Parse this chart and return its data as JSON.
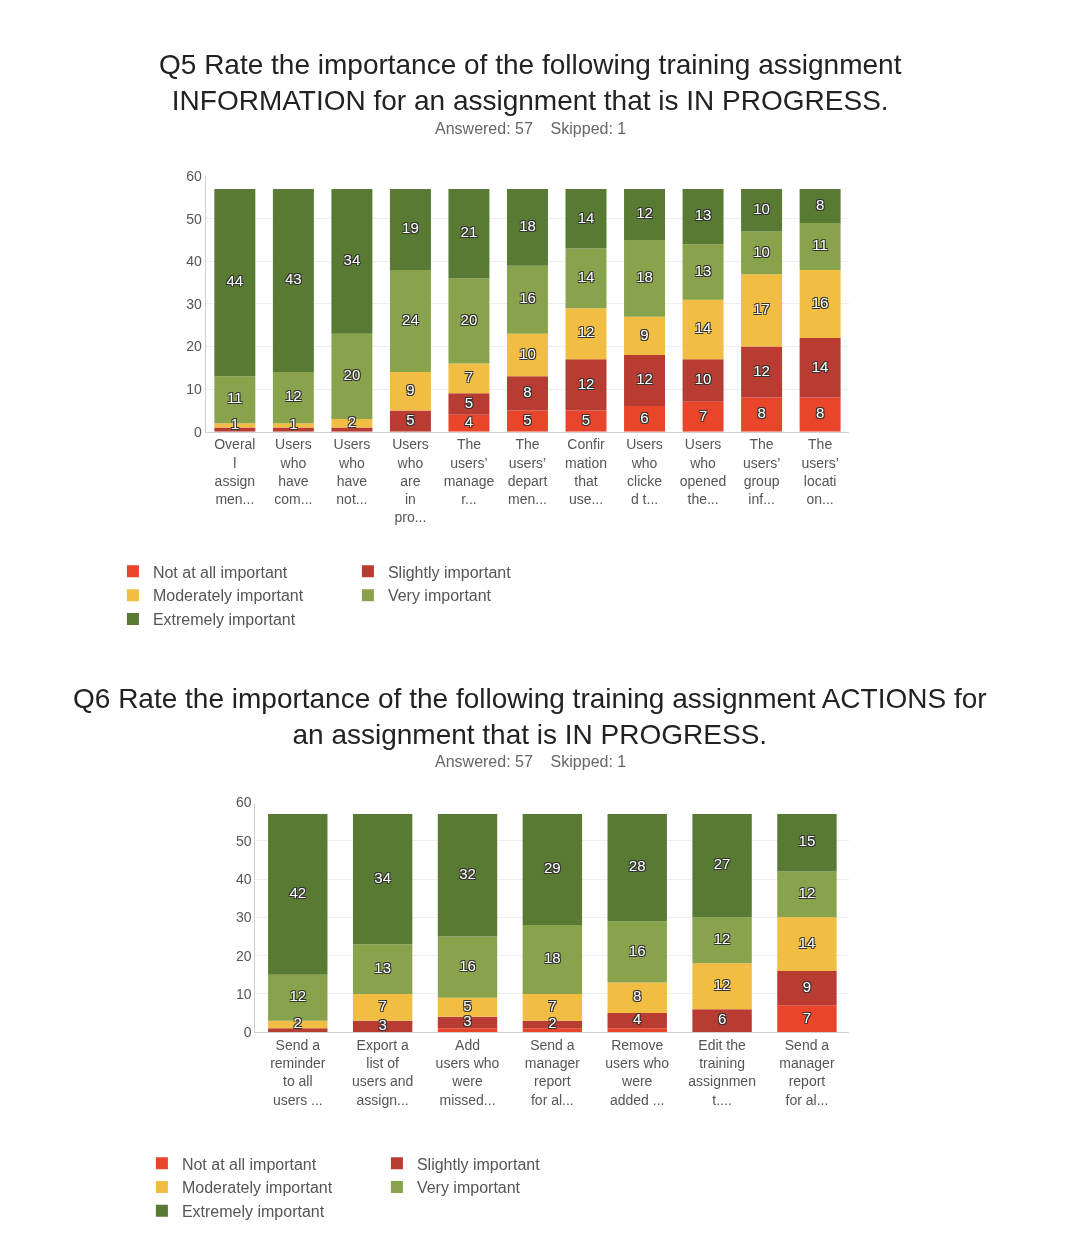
{
  "chart_data": [
    {
      "type": "bar",
      "stacked": true,
      "title": "Q5 Rate the importance of the following training assignment\nINFORMATION for an assignment that is IN PROGRESS.",
      "subtitle": "Answered: 57    Skipped: 1",
      "categories": [
        "Overal\nl\nassign\nmen...",
        "Users\nwho\nhave\ncom...",
        "Users\nwho\nhave\nnot...",
        "Users\nwho\nare\nin\npro...",
        "The\nusers’\nmanage\nr...",
        "The\nusers’\ndepart\nmen...",
        "Confir\nmation\nthat\nuse...",
        "Users\nwho\nclicke\nd t...",
        "Users\nwho\nopened\nthe...",
        "The\nusers’\ngroup\ninf...",
        "The\nusers’\nlocati\non..."
      ],
      "series": [
        {
          "name": "Not at all important",
          "color": "#e8452a",
          "values": [
            0,
            0,
            0,
            0,
            4,
            5,
            5,
            6,
            7,
            8,
            8
          ],
          "value_labels": [
            null,
            null,
            null,
            null,
            "4",
            "5",
            "5",
            "6",
            "7",
            "8",
            "8"
          ]
        },
        {
          "name": "Slightly important",
          "color": "#b83c31",
          "values": [
            1,
            1,
            1,
            5,
            5,
            8,
            12,
            12,
            10,
            12,
            14
          ],
          "value_labels": [
            null,
            null,
            null,
            "5",
            "5",
            "8",
            "12",
            "12",
            "10",
            "12",
            "14"
          ]
        },
        {
          "name": "Moderately important",
          "color": "#f1bd43",
          "values": [
            1,
            1,
            2,
            9,
            7,
            10,
            12,
            9,
            14,
            17,
            16
          ],
          "value_labels": [
            "1",
            "1",
            "2",
            "9",
            "7",
            "10",
            "12",
            "9",
            "14",
            "17",
            "16"
          ]
        },
        {
          "name": "Very important",
          "color": "#88a34b",
          "values": [
            11,
            12,
            20,
            24,
            20,
            16,
            14,
            18,
            13,
            10,
            11
          ],
          "value_labels": [
            "11",
            "12",
            "20",
            "24",
            "20",
            "16",
            "14",
            "18",
            "13",
            "10",
            "11"
          ]
        },
        {
          "name": "Extremely important",
          "color": "#587a33",
          "values": [
            44,
            43,
            34,
            19,
            21,
            18,
            14,
            12,
            13,
            10,
            8
          ],
          "value_labels": [
            "44",
            "43",
            "34",
            "19",
            "21",
            "18",
            "14",
            "12",
            "13",
            "10",
            "8"
          ]
        }
      ],
      "ylim": [
        0,
        60
      ],
      "yticks": [
        0,
        10,
        20,
        30,
        40,
        50,
        60
      ],
      "grid": "y",
      "legend": "bottom"
    },
    {
      "type": "bar",
      "stacked": true,
      "title": "Q6 Rate the importance of the following training assignment ACTIONS for\nan assignment that is IN PROGRESS.",
      "subtitle": "Answered: 57    Skipped: 1",
      "categories": [
        "Send a\nreminder\nto all\nusers ...",
        "Export a\nlist of\nusers and\nassign...",
        "Add\nusers who\nwere\nmissed...",
        "Send a\nmanager\nreport\nfor al...",
        "Remove\nusers who\nwere\nadded ...",
        "Edit the\ntraining\nassignmen\nt....",
        "Send a\nmanager\nreport\nfor al..."
      ],
      "series": [
        {
          "name": "Not at all important",
          "color": "#e8452a",
          "values": [
            0,
            0,
            1,
            1,
            1,
            0,
            7
          ],
          "value_labels": [
            null,
            null,
            null,
            null,
            null,
            null,
            "7"
          ]
        },
        {
          "name": "Slightly important",
          "color": "#b83c31",
          "values": [
            1,
            3,
            3,
            2,
            4,
            6,
            9
          ],
          "value_labels": [
            null,
            "3",
            "3",
            "2",
            "4",
            "6",
            "9"
          ]
        },
        {
          "name": "Moderately important",
          "color": "#f1bd43",
          "values": [
            2,
            7,
            5,
            7,
            8,
            12,
            14
          ],
          "value_labels": [
            "2",
            "7",
            "5",
            "7",
            "8",
            "12",
            "14"
          ]
        },
        {
          "name": "Very important",
          "color": "#88a34b",
          "values": [
            12,
            13,
            16,
            18,
            16,
            12,
            12
          ],
          "value_labels": [
            "12",
            "13",
            "16",
            "18",
            "16",
            "12",
            "12"
          ]
        },
        {
          "name": "Extremely important",
          "color": "#587a33",
          "values": [
            42,
            34,
            32,
            29,
            28,
            27,
            15
          ],
          "value_labels": [
            "42",
            "34",
            "32",
            "29",
            "28",
            "27",
            "15"
          ]
        }
      ],
      "ylim": [
        0,
        60
      ],
      "yticks": [
        0,
        10,
        20,
        30,
        40,
        50,
        60
      ],
      "grid": "y",
      "legend": "bottom"
    }
  ]
}
